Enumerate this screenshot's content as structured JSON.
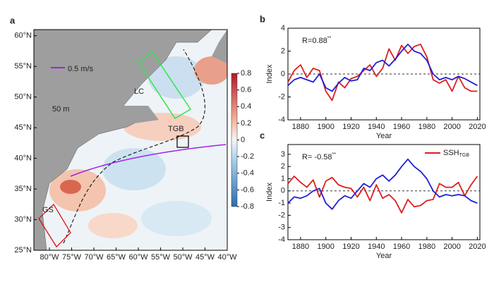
{
  "chart_data": [
    {
      "type": "map",
      "label": "a",
      "xlim": [
        -83.5,
        -40
      ],
      "ylim": [
        25,
        61
      ],
      "xticks": [
        {
          "value": -80,
          "label": "80°W"
        },
        {
          "value": -75,
          "label": "75°W"
        },
        {
          "value": -70,
          "label": "70°W"
        },
        {
          "value": -65,
          "label": "65°W"
        },
        {
          "value": -60,
          "label": "60°W"
        },
        {
          "value": -55,
          "label": "55°W"
        },
        {
          "value": -50,
          "label": "50°W"
        },
        {
          "value": -45,
          "label": "45°W"
        },
        {
          "value": -40,
          "label": "40°W"
        }
      ],
      "yticks": [
        {
          "value": 25,
          "label": "25°N"
        },
        {
          "value": 30,
          "label": "30°N"
        },
        {
          "value": 35,
          "label": "35°N"
        },
        {
          "value": 40,
          "label": "40°N"
        },
        {
          "value": 45,
          "label": "45°N"
        },
        {
          "value": 50,
          "label": "50°N"
        },
        {
          "value": 55,
          "label": "55°N"
        },
        {
          "value": 60,
          "label": "60°N"
        }
      ],
      "colorbar_lim": [
        -0.8,
        0.8
      ],
      "colorbar_ticks": [
        -0.8,
        -0.6,
        -0.4,
        -0.2,
        0,
        0.2,
        0.4,
        0.6,
        0.8
      ],
      "annotations": [
        "50 m",
        "0.5 m/s",
        "LC",
        "GS",
        "TGB"
      ]
    },
    {
      "type": "line",
      "label": "b",
      "xlabel": "Year",
      "ylabel": "Index",
      "annotation": {
        "text": "R=0.88",
        "sup": "**"
      },
      "x": [
        1870,
        1875,
        1880,
        1885,
        1890,
        1895,
        1900,
        1905,
        1910,
        1915,
        1920,
        1925,
        1930,
        1935,
        1940,
        1945,
        1950,
        1955,
        1960,
        1965,
        1970,
        1975,
        1980,
        1985,
        1990,
        1995,
        2000,
        2005,
        2010,
        2015,
        2020
      ],
      "series": [
        {
          "color": "#dd1f1f",
          "values": [
            -0.7,
            0.3,
            0.8,
            -0.3,
            0.5,
            0.3,
            -1.5,
            -2.3,
            -0.7,
            -1.2,
            -0.4,
            -0.2,
            0.3,
            0.8,
            -0.2,
            0.5,
            2.2,
            1.2,
            2.5,
            1.8,
            2.4,
            2.6,
            1.5,
            -0.5,
            -0.8,
            -0.5,
            -1.5,
            -0.2,
            -1.2,
            -1.5,
            -1.5
          ]
        },
        {
          "color": "#1f1fd6",
          "values": [
            -1,
            -0.5,
            -0.3,
            -0.5,
            -0.7,
            0,
            -1.2,
            -1.5,
            -0.8,
            -0.3,
            -0.6,
            -0.5,
            0.5,
            0.3,
            1,
            1.2,
            0.7,
            1.3,
            2,
            2.6,
            2,
            1.8,
            1.2,
            0,
            -0.5,
            -0.3,
            -0.5,
            -0.2,
            -0.4,
            -0.7,
            -1
          ]
        }
      ],
      "xlim": [
        1870,
        2022
      ],
      "ylim": [
        -4,
        4
      ],
      "xticks": [
        1880,
        1900,
        1920,
        1940,
        1960,
        1980,
        2000,
        2020
      ],
      "yticks": [
        -4,
        -2,
        0,
        2,
        4
      ],
      "hline": 0
    },
    {
      "type": "line",
      "label": "c",
      "xlabel": "Year",
      "ylabel": "Index",
      "annotation": {
        "text": "R= -0.58",
        "sup": "**"
      },
      "x": [
        1870,
        1875,
        1880,
        1885,
        1890,
        1895,
        1900,
        1905,
        1910,
        1915,
        1920,
        1925,
        1930,
        1935,
        1940,
        1945,
        1950,
        1955,
        1960,
        1965,
        1970,
        1975,
        1980,
        1985,
        1990,
        1995,
        2000,
        2005,
        2010,
        2015,
        2020
      ],
      "series": [
        {
          "name": "SSH",
          "subscript": "TGB",
          "color": "#dd1f1f",
          "values": [
            0.6,
            1.2,
            0.7,
            0.3,
            0.9,
            -0.5,
            0.8,
            1.1,
            0.5,
            0.3,
            0.2,
            -0.5,
            0.3,
            -0.8,
            0.5,
            -0.6,
            -0.3,
            -0.8,
            -1.8,
            -0.7,
            -1.3,
            -1.2,
            -0.8,
            -0.7,
            0.6,
            0.3,
            0.3,
            0.7,
            -0.4,
            0.5,
            1.2
          ]
        },
        {
          "color": "#1f1fd6",
          "values": [
            -1,
            -0.5,
            -0.6,
            -0.4,
            0,
            0.2,
            -1,
            -1.5,
            -0.8,
            -0.4,
            -0.6,
            0,
            0.6,
            0.3,
            1,
            1.3,
            0.8,
            1.3,
            2,
            2.6,
            2,
            1.6,
            1,
            0,
            -0.5,
            -0.3,
            -0.4,
            -0.3,
            -0.4,
            -0.8,
            -1
          ]
        }
      ],
      "xlim": [
        1870,
        2022
      ],
      "ylim": [
        -4,
        3.8
      ],
      "xticks": [
        1880,
        1900,
        1920,
        1940,
        1960,
        1980,
        2000,
        2020
      ],
      "yticks": [
        -4,
        -3,
        -2,
        -1,
        0,
        1,
        2,
        3
      ],
      "hline": 0
    }
  ]
}
